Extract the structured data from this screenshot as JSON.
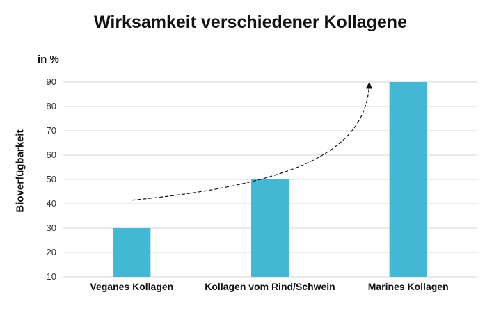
{
  "chart_data": {
    "type": "bar",
    "title": "Wirksamkeit verschiedener Kollagene",
    "unit_label": "in %",
    "ylabel": "Bioverfügbarkeit",
    "xlabel": "",
    "categories": [
      "Veganes Kollagen",
      "Kollagen vom Rind/Schwein",
      "Marines Kollagen"
    ],
    "values": [
      30,
      50,
      90
    ],
    "ylim": [
      10,
      90
    ],
    "yticks": [
      10,
      20,
      30,
      40,
      50,
      60,
      70,
      80,
      90
    ],
    "grid": true,
    "bar_color": "#42b8d4",
    "annotations": [
      {
        "type": "dashed-arrow",
        "description": "rising trend from first to last bar"
      }
    ]
  }
}
